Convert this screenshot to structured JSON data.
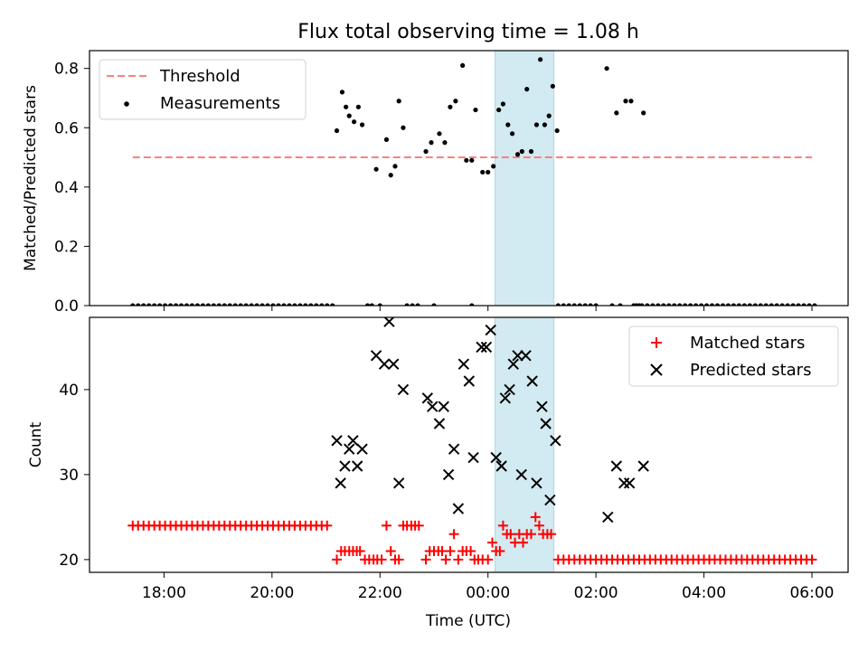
{
  "title": "Flux total observing time = 1.08 h",
  "xlabel": "Time (UTC)",
  "x_ticks": [
    "18:00",
    "20:00",
    "22:00",
    "00:00",
    "02:00",
    "04:00",
    "06:00"
  ],
  "x_tick_hours": [
    18,
    20,
    22,
    24,
    26,
    28,
    30
  ],
  "x_range_hours": [
    16.62,
    30.67
  ],
  "observing_window_hours": [
    24.13,
    25.22
  ],
  "colors": {
    "threshold": "#ff7f7f",
    "measurements": "#000000",
    "matched": "#ff0000",
    "predicted": "#000000",
    "window": "#add8e6"
  },
  "chart_data": [
    {
      "type": "scatter",
      "ylabel": "Matched/Predicted stars",
      "ylim": [
        0,
        0.86
      ],
      "yticks": [
        "0.0",
        "0.2",
        "0.4",
        "0.6",
        "0.8"
      ],
      "ytick_values": [
        0,
        0.2,
        0.4,
        0.6,
        0.8
      ],
      "legend_position": "top-left",
      "threshold": {
        "name": "Threshold",
        "value": 0.5,
        "x": [
          17.42,
          30.0
        ]
      },
      "measurements_name": "Measurements",
      "zero_points": {
        "x_start": 17.42,
        "x_end": 21.12,
        "x_step": 0.1,
        "extra_x": [
          21.77,
          21.85,
          22.0,
          22.5,
          22.6,
          22.7,
          23.0,
          23.7,
          25.3,
          25.4,
          25.5,
          25.6,
          25.7,
          25.8,
          25.9,
          26.0,
          26.3,
          26.45,
          26.7,
          26.8
        ],
        "x_start_2": 26.75,
        "x_end_2": 30.05,
        "x_step_2": 0.1
      },
      "points": [
        [
          21.2,
          0.59
        ],
        [
          21.3,
          0.72
        ],
        [
          21.37,
          0.67
        ],
        [
          21.43,
          0.64
        ],
        [
          21.52,
          0.62
        ],
        [
          21.6,
          0.67
        ],
        [
          21.67,
          0.61
        ],
        [
          21.93,
          0.46
        ],
        [
          22.12,
          0.56
        ],
        [
          22.2,
          0.44
        ],
        [
          22.28,
          0.47
        ],
        [
          22.35,
          0.69
        ],
        [
          22.43,
          0.6
        ],
        [
          22.85,
          0.52
        ],
        [
          22.95,
          0.55
        ],
        [
          23.1,
          0.58
        ],
        [
          23.2,
          0.55
        ],
        [
          23.3,
          0.67
        ],
        [
          23.4,
          0.69
        ],
        [
          23.53,
          0.81
        ],
        [
          23.6,
          0.49
        ],
        [
          23.7,
          0.49
        ],
        [
          23.77,
          0.66
        ],
        [
          23.9,
          0.45
        ],
        [
          24.0,
          0.45
        ],
        [
          24.1,
          0.47
        ],
        [
          24.2,
          0.66
        ],
        [
          24.28,
          0.68
        ],
        [
          24.37,
          0.61
        ],
        [
          24.45,
          0.58
        ],
        [
          24.55,
          0.51
        ],
        [
          24.63,
          0.52
        ],
        [
          24.72,
          0.73
        ],
        [
          24.8,
          0.52
        ],
        [
          24.9,
          0.61
        ],
        [
          24.97,
          0.83
        ],
        [
          25.05,
          0.61
        ],
        [
          25.13,
          0.64
        ],
        [
          25.2,
          0.74
        ],
        [
          25.28,
          0.59
        ],
        [
          26.2,
          0.8
        ],
        [
          26.38,
          0.65
        ],
        [
          26.55,
          0.69
        ],
        [
          26.65,
          0.69
        ],
        [
          26.88,
          0.65
        ]
      ]
    },
    {
      "type": "scatter",
      "ylabel": "Count",
      "ylim": [
        18.5,
        48.5
      ],
      "yticks": [
        "20",
        "30",
        "40"
      ],
      "ytick_values": [
        20,
        30,
        40
      ],
      "legend_position": "top-right",
      "series": [
        {
          "name": "Matched stars",
          "marker": "plus",
          "runs": [
            {
              "x_start": 17.42,
              "x_end": 21.1,
              "x_step": 0.1,
              "y": 24
            },
            {
              "x_start": 26.2,
              "x_end": 30.05,
              "x_step": 0.1,
              "y": 20
            }
          ],
          "points": [
            [
              25.3,
              20
            ],
            [
              25.4,
              20
            ],
            [
              25.5,
              20
            ],
            [
              25.6,
              20
            ],
            [
              25.7,
              20
            ],
            [
              25.8,
              20
            ],
            [
              25.9,
              20
            ],
            [
              26.0,
              20
            ],
            [
              26.1,
              20
            ],
            [
              21.2,
              20
            ],
            [
              21.28,
              21
            ],
            [
              21.35,
              21
            ],
            [
              21.43,
              21
            ],
            [
              21.5,
              21
            ],
            [
              21.57,
              21
            ],
            [
              21.63,
              21
            ],
            [
              21.72,
              20
            ],
            [
              21.8,
              20
            ],
            [
              21.88,
              20
            ],
            [
              21.95,
              20
            ],
            [
              22.03,
              20
            ],
            [
              22.12,
              24
            ],
            [
              22.2,
              21
            ],
            [
              22.28,
              20
            ],
            [
              22.35,
              20
            ],
            [
              22.43,
              24
            ],
            [
              22.5,
              24
            ],
            [
              22.58,
              24
            ],
            [
              22.65,
              24
            ],
            [
              22.72,
              24
            ],
            [
              22.85,
              20
            ],
            [
              22.92,
              21
            ],
            [
              23.0,
              21
            ],
            [
              23.08,
              21
            ],
            [
              23.15,
              21
            ],
            [
              23.22,
              20
            ],
            [
              23.3,
              21
            ],
            [
              23.37,
              23
            ],
            [
              23.45,
              20
            ],
            [
              23.53,
              21
            ],
            [
              23.6,
              21
            ],
            [
              23.68,
              21
            ],
            [
              23.75,
              20
            ],
            [
              23.82,
              20
            ],
            [
              23.9,
              20
            ],
            [
              24.0,
              20
            ],
            [
              24.08,
              22
            ],
            [
              24.15,
              21
            ],
            [
              24.22,
              21
            ],
            [
              24.28,
              24
            ],
            [
              24.35,
              23
            ],
            [
              24.42,
              23
            ],
            [
              24.5,
              22
            ],
            [
              24.58,
              23
            ],
            [
              24.65,
              22
            ],
            [
              24.72,
              23
            ],
            [
              24.8,
              23
            ],
            [
              24.88,
              25
            ],
            [
              24.95,
              24
            ],
            [
              25.02,
              23
            ],
            [
              25.1,
              23
            ],
            [
              25.17,
              23
            ]
          ]
        },
        {
          "name": "Predicted stars",
          "marker": "x",
          "points": [
            [
              21.2,
              34
            ],
            [
              21.27,
              29
            ],
            [
              21.35,
              31
            ],
            [
              21.43,
              33
            ],
            [
              21.5,
              34
            ],
            [
              21.58,
              31
            ],
            [
              21.67,
              33
            ],
            [
              21.93,
              44
            ],
            [
              22.08,
              43
            ],
            [
              22.17,
              48
            ],
            [
              22.25,
              43
            ],
            [
              22.35,
              29
            ],
            [
              22.43,
              40
            ],
            [
              22.88,
              39
            ],
            [
              22.97,
              38
            ],
            [
              23.1,
              36
            ],
            [
              23.18,
              38
            ],
            [
              23.27,
              30
            ],
            [
              23.37,
              33
            ],
            [
              23.45,
              26
            ],
            [
              23.55,
              43
            ],
            [
              23.65,
              41
            ],
            [
              23.73,
              32
            ],
            [
              23.88,
              45
            ],
            [
              23.97,
              45
            ],
            [
              24.05,
              47
            ],
            [
              24.15,
              32
            ],
            [
              24.25,
              31
            ],
            [
              24.32,
              39
            ],
            [
              24.4,
              40
            ],
            [
              24.47,
              43
            ],
            [
              24.55,
              44
            ],
            [
              24.62,
              30
            ],
            [
              24.7,
              44
            ],
            [
              24.82,
              41
            ],
            [
              24.9,
              29
            ],
            [
              25.0,
              38
            ],
            [
              25.07,
              36
            ],
            [
              25.15,
              27
            ],
            [
              25.25,
              34
            ],
            [
              26.22,
              25
            ],
            [
              26.38,
              31
            ],
            [
              26.52,
              29
            ],
            [
              26.62,
              29
            ],
            [
              26.88,
              31
            ]
          ]
        }
      ]
    }
  ]
}
